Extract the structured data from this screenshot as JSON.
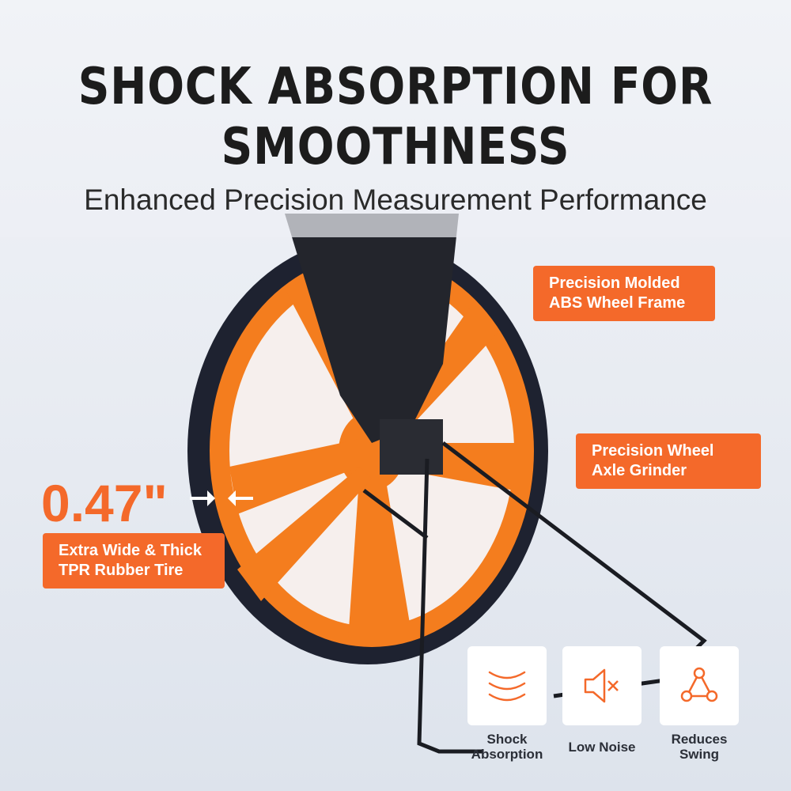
{
  "header": {
    "title_line1": "SHOCK ABSORPTION FOR",
    "title_line2": "SMOOTHNESS",
    "subtitle": "Enhanced Precision Measurement Performance"
  },
  "callouts": {
    "frame": "Precision Molded ABS Wheel Frame",
    "axle": "Precision Wheel Axle Grinder",
    "tire_thickness": "0.47\"",
    "tire": "Extra Wide & Thick TPR Rubber Tire"
  },
  "features": [
    {
      "icon": "shock-waves-icon",
      "label": "Shock Absorption"
    },
    {
      "icon": "mute-speaker-icon",
      "label": "Low Noise"
    },
    {
      "icon": "triangle-nodes-icon",
      "label": "Reduces Swing"
    }
  ],
  "colors": {
    "accent": "#f4692a",
    "tire": "#1e2230",
    "text": "#1c1c1c"
  }
}
